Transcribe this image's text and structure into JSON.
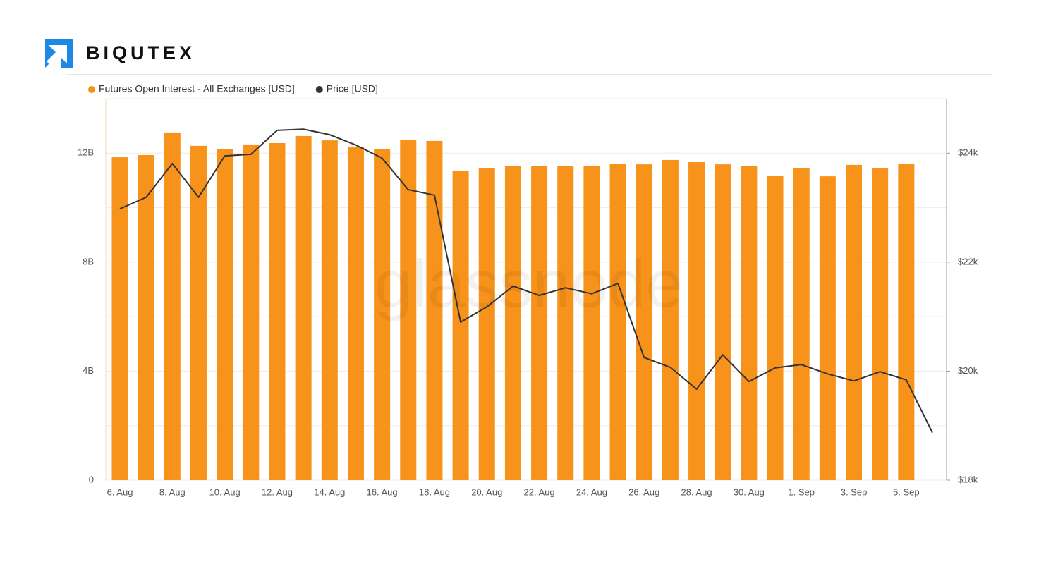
{
  "brand": "BIQUTEX",
  "chart_data": {
    "type": "bar_line",
    "watermark": "glassnode",
    "categories": [
      "6. Aug",
      null,
      "8. Aug",
      null,
      "10. Aug",
      null,
      "12. Aug",
      null,
      "14. Aug",
      null,
      "16. Aug",
      null,
      "18. Aug",
      null,
      "20. Aug",
      null,
      "22. Aug",
      null,
      "24. Aug",
      null,
      "26. Aug",
      null,
      "28. Aug",
      null,
      "30. Aug",
      null,
      "1. Sep",
      null,
      "3. Sep",
      null,
      "5. Sep",
      null
    ],
    "series": [
      {
        "name": "Futures Open Interest - All Exchanges [USD]",
        "type": "bar",
        "color": "#f7931a",
        "values": [
          11.85,
          11.93,
          12.76,
          12.27,
          12.16,
          12.32,
          12.37,
          12.63,
          12.47,
          12.22,
          12.14,
          12.5,
          12.45,
          11.36,
          11.44,
          11.54,
          11.52,
          11.54,
          11.52,
          11.62,
          11.59,
          11.75,
          11.67,
          11.59,
          11.52,
          11.18,
          11.44,
          11.15,
          11.57,
          11.46,
          11.62,
          null
        ]
      },
      {
        "name": "Price [USD]",
        "type": "line",
        "axis": "y2",
        "color": "#333333",
        "values": [
          22980,
          23190,
          23810,
          23190,
          23950,
          23980,
          24420,
          24440,
          24340,
          24150,
          23910,
          23330,
          23230,
          20900,
          21180,
          21560,
          21390,
          21530,
          21420,
          21610,
          20250,
          20070,
          19670,
          20300,
          19810,
          20060,
          20120,
          19950,
          19820,
          19990,
          19840,
          18870
        ]
      }
    ],
    "ylim": [
      0,
      14
    ],
    "yticks": [
      0,
      {
        "value": 4,
        "label": "4B"
      },
      {
        "value": 8,
        "label": "8B"
      },
      {
        "value": 12,
        "label": "12B"
      }
    ],
    "y2lim": [
      18000,
      25000
    ],
    "y2ticks": [
      {
        "value": 18000,
        "label": "$18k"
      },
      {
        "value": 20000,
        "label": "$20k"
      },
      {
        "value": 22000,
        "label": "$22k"
      },
      {
        "value": 24000,
        "label": "$24k"
      }
    ],
    "grid": true,
    "legend": "top-left"
  }
}
